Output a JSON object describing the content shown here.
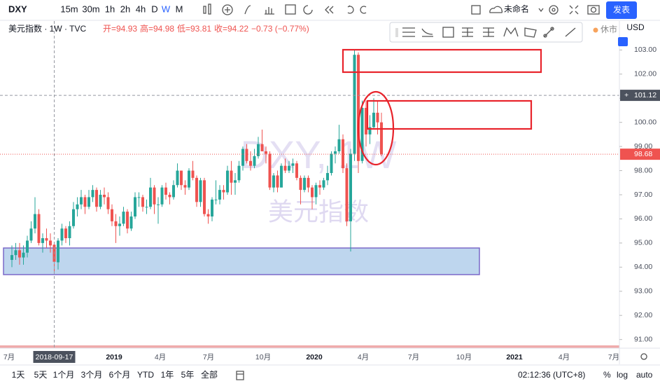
{
  "toolbar": {
    "symbol": "DXY",
    "intervals": [
      "15m",
      "30m",
      "1h",
      "2h",
      "4h",
      "D",
      "W",
      "M"
    ],
    "layout_name": "未命名",
    "publish": "发表"
  },
  "legend": {
    "name": "美元指数 · 1W · TVC",
    "open": "开=94.93",
    "high": "高=94.98",
    "low": "低=93.81",
    "close": "收=94.22",
    "change": "−0.73 (−0.77%)",
    "market": "休市"
  },
  "watermark": {
    "line1": "DXY, 1W",
    "line2": "美元指数"
  },
  "chart": {
    "type": "candlestick",
    "currency": "USD",
    "up_color": "#26a69a",
    "down_color": "#ef5350",
    "ylim": [
      90.7,
      104.2
    ],
    "yticks": [
      {
        "value": 103,
        "label": "103.00"
      },
      {
        "value": 102,
        "label": "102.00"
      },
      {
        "value": 101,
        "label": "101.00"
      },
      {
        "value": 100,
        "label": "100.00"
      },
      {
        "value": 99,
        "label": "99.00"
      },
      {
        "value": 98,
        "label": "98.00"
      },
      {
        "value": 97,
        "label": "97.00"
      },
      {
        "value": 96,
        "label": "96.00"
      },
      {
        "value": 95,
        "label": "95.00"
      },
      {
        "value": 94,
        "label": "94.00"
      },
      {
        "value": 93,
        "label": "93.00"
      },
      {
        "value": 92,
        "label": "92.00"
      },
      {
        "value": 91,
        "label": "91.00"
      }
    ],
    "crosshair_price": 101.12,
    "last_price": 98.68,
    "crosshair_date": "2018-09-17",
    "xlabels": [
      "7月",
      "2019",
      "4月",
      "7月",
      "10月",
      "2020",
      "4月",
      "7月",
      "10月",
      "2021",
      "4月",
      "7月"
    ],
    "candles": [
      [
        94.3,
        94.9,
        94.0,
        94.5
      ],
      [
        94.5,
        95.0,
        94.3,
        94.7
      ],
      [
        94.7,
        95.0,
        94.1,
        94.4
      ],
      [
        94.4,
        94.9,
        94.1,
        94.6
      ],
      [
        94.6,
        95.3,
        94.4,
        95.1
      ],
      [
        95.1,
        95.9,
        95.0,
        95.6
      ],
      [
        95.6,
        96.9,
        95.4,
        96.2
      ],
      [
        96.2,
        96.4,
        94.9,
        95.0
      ],
      [
        95.0,
        95.4,
        94.6,
        95.2
      ],
      [
        95.2,
        95.6,
        94.8,
        95.1
      ],
      [
        95.1,
        95.4,
        94.6,
        94.9
      ],
      [
        94.93,
        94.98,
        93.81,
        94.22
      ],
      [
        94.2,
        95.2,
        93.9,
        95.1
      ],
      [
        95.1,
        95.8,
        94.9,
        95.6
      ],
      [
        95.6,
        95.7,
        95.0,
        95.2
      ],
      [
        95.2,
        95.9,
        94.9,
        95.7
      ],
      [
        95.7,
        96.7,
        95.6,
        96.4
      ],
      [
        96.4,
        96.9,
        96.1,
        96.6
      ],
      [
        96.6,
        97.2,
        96.4,
        96.9
      ],
      [
        96.9,
        97.0,
        96.2,
        96.5
      ],
      [
        96.5,
        97.2,
        96.4,
        96.9
      ],
      [
        96.9,
        97.4,
        96.7,
        97.2
      ],
      [
        97.2,
        97.3,
        96.3,
        96.5
      ],
      [
        96.5,
        97.2,
        96.4,
        97.0
      ],
      [
        97.0,
        97.3,
        96.6,
        96.9
      ],
      [
        96.9,
        97.1,
        96.2,
        96.4
      ],
      [
        96.4,
        96.6,
        95.7,
        95.9
      ],
      [
        95.9,
        96.2,
        95.0,
        95.7
      ],
      [
        95.7,
        96.1,
        95.3,
        95.8
      ],
      [
        95.8,
        96.5,
        95.7,
        96.3
      ],
      [
        96.3,
        96.4,
        95.4,
        95.6
      ],
      [
        95.6,
        96.3,
        95.5,
        96.1
      ],
      [
        96.1,
        97.1,
        96.0,
        96.9
      ],
      [
        96.9,
        97.1,
        96.5,
        96.9
      ],
      [
        96.9,
        97.0,
        96.3,
        96.5
      ],
      [
        96.5,
        96.8,
        96.2,
        96.5
      ],
      [
        96.5,
        97.7,
        96.4,
        97.3
      ],
      [
        97.3,
        97.4,
        96.2,
        96.6
      ],
      [
        96.6,
        96.9,
        95.8,
        96.6
      ],
      [
        96.6,
        97.4,
        96.5,
        97.3
      ],
      [
        97.3,
        97.5,
        96.8,
        97.0
      ],
      [
        97.0,
        97.1,
        96.6,
        96.9
      ],
      [
        96.9,
        97.6,
        96.8,
        97.4
      ],
      [
        97.4,
        98.3,
        97.3,
        98.0
      ],
      [
        98.0,
        98.0,
        97.2,
        97.4
      ],
      [
        97.4,
        97.6,
        97.0,
        97.3
      ],
      [
        97.3,
        98.1,
        97.2,
        98.0
      ],
      [
        98.0,
        98.4,
        97.6,
        97.7
      ],
      [
        97.7,
        97.8,
        96.5,
        96.7
      ],
      [
        96.7,
        97.7,
        96.5,
        97.6
      ],
      [
        97.6,
        97.7,
        96.1,
        96.2
      ],
      [
        96.2,
        96.4,
        95.8,
        96.1
      ],
      [
        96.1,
        96.9,
        95.9,
        96.8
      ],
      [
        96.8,
        97.6,
        96.6,
        96.8
      ],
      [
        96.8,
        97.4,
        96.6,
        97.2
      ],
      [
        97.2,
        97.4,
        96.8,
        97.1
      ],
      [
        97.1,
        98.2,
        97.0,
        98.0
      ],
      [
        98.0,
        98.4,
        97.0,
        97.5
      ],
      [
        97.5,
        97.9,
        97.0,
        97.6
      ],
      [
        97.6,
        98.4,
        97.5,
        98.2
      ],
      [
        98.2,
        99.0,
        98.0,
        98.9
      ],
      [
        98.9,
        99.1,
        98.3,
        98.4
      ],
      [
        98.4,
        98.8,
        98.0,
        98.2
      ],
      [
        98.2,
        98.9,
        98.1,
        98.6
      ],
      [
        98.6,
        99.4,
        98.5,
        99.1
      ],
      [
        99.1,
        99.7,
        98.8,
        98.8
      ],
      [
        98.8,
        99.0,
        98.3,
        98.7
      ],
      [
        98.7,
        98.8,
        97.2,
        97.3
      ],
      [
        97.3,
        97.9,
        97.1,
        97.8
      ],
      [
        97.8,
        98.0,
        97.1,
        97.3
      ],
      [
        97.3,
        98.3,
        97.3,
        98.2
      ],
      [
        98.2,
        98.5,
        97.9,
        98.0
      ],
      [
        98.0,
        98.4,
        97.9,
        98.2
      ],
      [
        98.2,
        98.5,
        97.9,
        98.3
      ],
      [
        98.3,
        98.4,
        97.6,
        97.7
      ],
      [
        97.7,
        97.8,
        96.6,
        97.2
      ],
      [
        97.2,
        97.8,
        97.1,
        97.7
      ],
      [
        97.7,
        97.8,
        97.1,
        97.3
      ],
      [
        97.3,
        97.4,
        96.4,
        96.9
      ],
      [
        96.9,
        97.5,
        96.6,
        97.4
      ],
      [
        97.4,
        97.6,
        97.0,
        97.3
      ],
      [
        97.3,
        97.7,
        97.2,
        97.6
      ],
      [
        97.6,
        98.2,
        97.4,
        97.9
      ],
      [
        97.9,
        98.8,
        97.8,
        98.7
      ],
      [
        98.7,
        99.0,
        98.3,
        98.8
      ],
      [
        98.8,
        99.9,
        98.7,
        99.3
      ],
      [
        99.3,
        99.5,
        97.9,
        98.1
      ],
      [
        98.1,
        98.3,
        95.7,
        95.9
      ],
      [
        95.9,
        98.9,
        94.65,
        98.7
      ],
      [
        98.7,
        102.99,
        98.4,
        102.8
      ],
      [
        102.8,
        102.9,
        97.9,
        98.4
      ],
      [
        98.4,
        100.9,
        98.3,
        100.6
      ],
      [
        100.6,
        100.9,
        99.0,
        99.5
      ],
      [
        99.5,
        100.3,
        99.1,
        99.8
      ],
      [
        99.8,
        101.0,
        99.7,
        100.4
      ],
      [
        100.4,
        100.9,
        99.5,
        100.0
      ],
      [
        100.0,
        100.4,
        98.6,
        98.68
      ]
    ]
  },
  "bottom": {
    "ranges": [
      "1天",
      "5天",
      "1个月",
      "3个月",
      "6个月",
      "YTD",
      "1年",
      "5年",
      "全部"
    ],
    "clock": "02:12:36 (UTC+8)",
    "percent": "%",
    "log": "log",
    "auto": "auto"
  }
}
